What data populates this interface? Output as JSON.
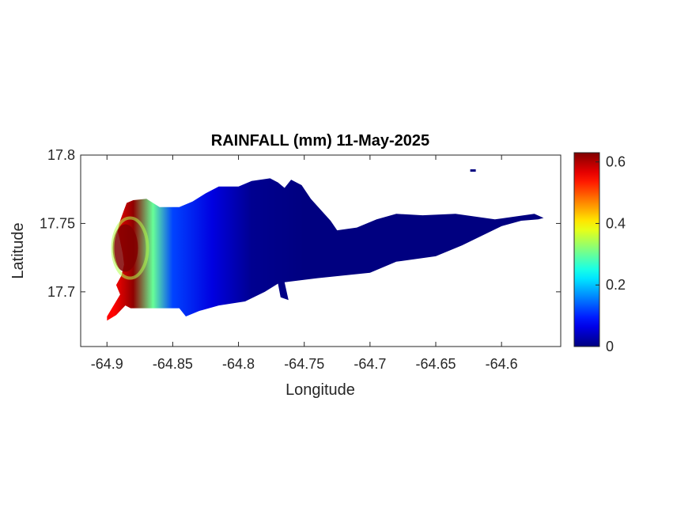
{
  "chart_data": {
    "type": "heatmap",
    "title": "RAINFALL (mm) 11-May-2025",
    "xlabel": "Longitude",
    "ylabel": "Latitude",
    "xlim": [
      -64.92,
      -64.555
    ],
    "ylim": [
      17.66,
      17.8
    ],
    "xticks": [
      -64.9,
      -64.85,
      -64.8,
      -64.75,
      -64.7,
      -64.65,
      -64.6
    ],
    "xtick_labels": [
      "-64.9",
      "-64.85",
      "-64.8",
      "-64.75",
      "-64.7",
      "-64.65",
      "-64.6"
    ],
    "yticks": [
      17.7,
      17.75,
      17.8
    ],
    "ytick_labels": [
      "17.7",
      "17.75",
      "17.8"
    ],
    "colorbar": {
      "colormap": "jet",
      "range": [
        0,
        0.63
      ],
      "ticks": [
        0,
        0.2,
        0.4,
        0.6
      ],
      "tick_labels": [
        "0",
        "0.2",
        "0.4",
        "0.6"
      ]
    },
    "grid": false,
    "field": {
      "description_units": "mm",
      "max_value": 0.63,
      "max_location": {
        "lon": -64.886,
        "lat": 17.732
      },
      "min_value": 0,
      "gradient_profile": [
        {
          "lon": -64.895,
          "rainfall_mm": 0.55
        },
        {
          "lon": -64.88,
          "rainfall_mm": 0.62
        },
        {
          "lon": -64.865,
          "rainfall_mm": 0.3
        },
        {
          "lon": -64.85,
          "rainfall_mm": 0.12
        },
        {
          "lon": -64.82,
          "rainfall_mm": 0.06
        },
        {
          "lon": -64.79,
          "rainfall_mm": 0.01
        },
        {
          "lon": -64.75,
          "rainfall_mm": 0
        },
        {
          "lon": -64.6,
          "rainfall_mm": 0
        }
      ]
    },
    "island_outline_lonlat": [
      [
        -64.9,
        17.679
      ],
      [
        -64.893,
        17.683
      ],
      [
        -64.886,
        17.69
      ],
      [
        -64.882,
        17.688
      ],
      [
        -64.86,
        17.688
      ],
      [
        -64.845,
        17.688
      ],
      [
        -64.84,
        17.682
      ],
      [
        -64.83,
        17.686
      ],
      [
        -64.815,
        17.69
      ],
      [
        -64.795,
        17.693
      ],
      [
        -64.78,
        17.7
      ],
      [
        -64.77,
        17.706
      ],
      [
        -64.768,
        17.696
      ],
      [
        -64.762,
        17.694
      ],
      [
        -64.765,
        17.707
      ],
      [
        -64.74,
        17.71
      ],
      [
        -64.7,
        17.714
      ],
      [
        -64.68,
        17.722
      ],
      [
        -64.65,
        17.726
      ],
      [
        -64.63,
        17.734
      ],
      [
        -64.615,
        17.741
      ],
      [
        -64.6,
        17.748
      ],
      [
        -64.585,
        17.752
      ],
      [
        -64.572,
        17.753
      ],
      [
        -64.568,
        17.754
      ],
      [
        -64.575,
        17.757
      ],
      [
        -64.59,
        17.755
      ],
      [
        -64.605,
        17.753
      ],
      [
        -64.62,
        17.755
      ],
      [
        -64.635,
        17.757
      ],
      [
        -64.66,
        17.756
      ],
      [
        -64.68,
        17.757
      ],
      [
        -64.695,
        17.753
      ],
      [
        -64.71,
        17.747
      ],
      [
        -64.725,
        17.745
      ],
      [
        -64.73,
        17.752
      ],
      [
        -64.745,
        17.768
      ],
      [
        -64.752,
        17.778
      ],
      [
        -64.76,
        17.782
      ],
      [
        -64.765,
        17.776
      ],
      [
        -64.77,
        17.78
      ],
      [
        -64.776,
        17.783
      ],
      [
        -64.79,
        17.781
      ],
      [
        -64.8,
        17.777
      ],
      [
        -64.815,
        17.777
      ],
      [
        -64.825,
        17.772
      ],
      [
        -64.835,
        17.766
      ],
      [
        -64.845,
        17.762
      ],
      [
        -64.86,
        17.762
      ],
      [
        -64.87,
        17.768
      ],
      [
        -64.88,
        17.767
      ],
      [
        -64.885,
        17.765
      ],
      [
        -64.887,
        17.76
      ],
      [
        -64.89,
        17.752
      ],
      [
        -64.892,
        17.745
      ],
      [
        -64.89,
        17.737
      ],
      [
        -64.888,
        17.728
      ],
      [
        -64.887,
        17.72
      ],
      [
        -64.889,
        17.712
      ],
      [
        -64.893,
        17.705
      ],
      [
        -64.89,
        17.698
      ],
      [
        -64.895,
        17.69
      ],
      [
        -64.9,
        17.682
      ]
    ],
    "islet_lonlat": {
      "lon": -64.622,
      "lat": 17.789
    }
  }
}
